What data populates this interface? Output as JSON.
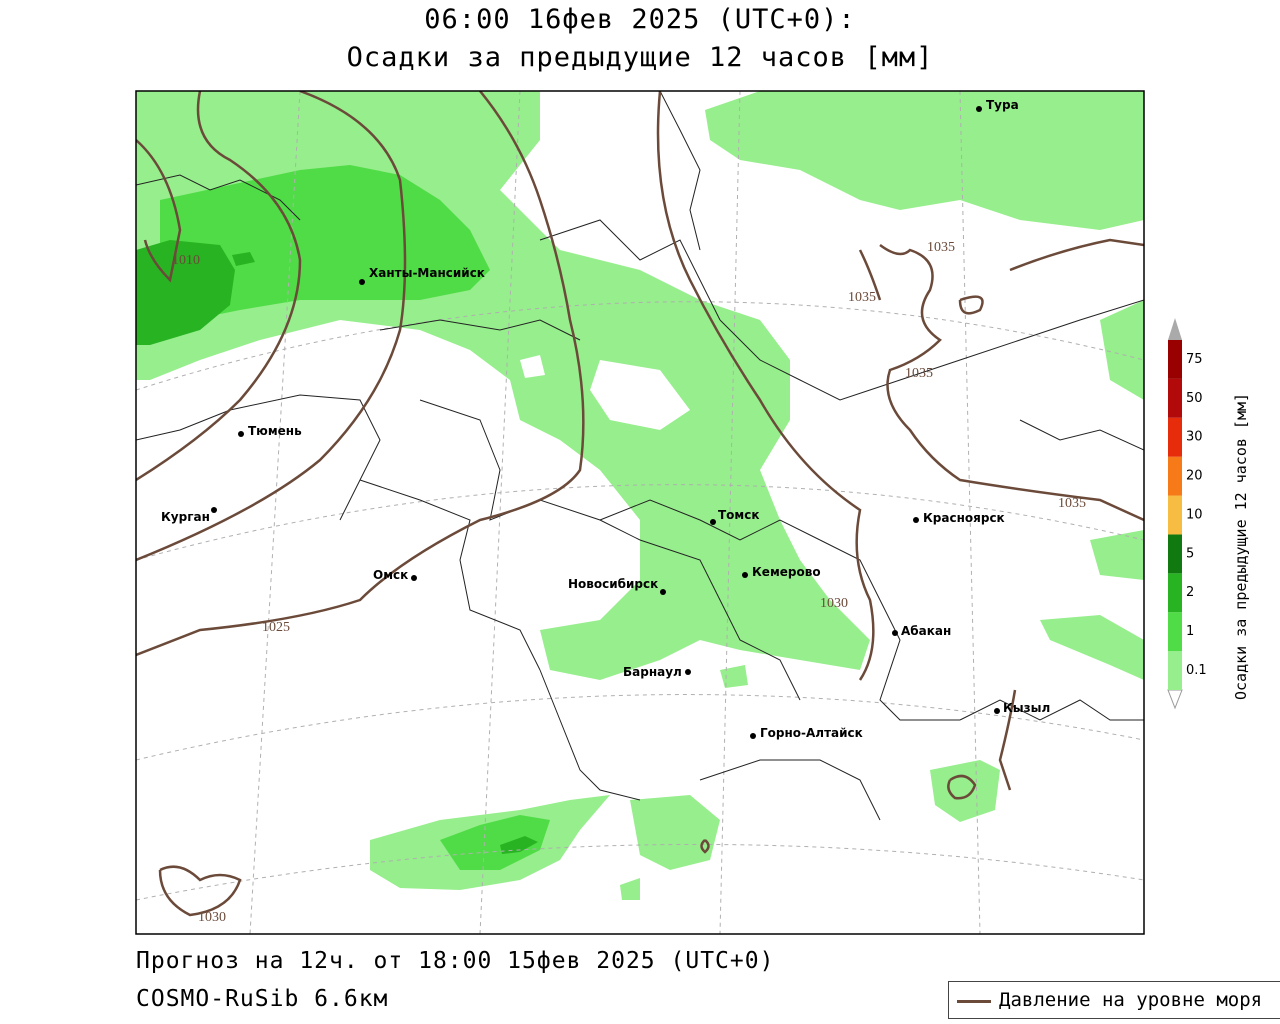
{
  "title": {
    "line1": "06:00 16фев 2025 (UTC+0):",
    "line2": "Осадки за предыдущие 12 часов [мм]"
  },
  "footer": {
    "forecast": "Прогноз на 12ч. от 18:00 15фев 2025 (UTC+0)",
    "model": "COSMO-RuSib 6.6км"
  },
  "pressure_legend": {
    "label": "Давление на уровне моря",
    "color": "#6b4a3a"
  },
  "colorbar": {
    "title": "Осадки за предыдущие 12 часов [мм]",
    "levels": [
      "0.1",
      "1",
      "2",
      "5",
      "10",
      "20",
      "30",
      "50",
      "75"
    ],
    "colors": [
      "#ffffff",
      "#96ee8c",
      "#50dc46",
      "#28b422",
      "#107a10",
      "#f7bd42",
      "#f67a18",
      "#e62c0a",
      "#b20a0a",
      "#990000",
      "#aaaaaa"
    ]
  },
  "cities": [
    {
      "name": "Тура"
    },
    {
      "name": "Ханты-Мансийск"
    },
    {
      "name": "Тюмень"
    },
    {
      "name": "Курган"
    },
    {
      "name": "Омск"
    },
    {
      "name": "Новосибирск"
    },
    {
      "name": "Томск"
    },
    {
      "name": "Кемерово"
    },
    {
      "name": "Красноярск"
    },
    {
      "name": "Абакан"
    },
    {
      "name": "Барнаул"
    },
    {
      "name": "Горно-Алтайск"
    },
    {
      "name": "Кызыл"
    }
  ],
  "isobar_labels": [
    "1010",
    "1025",
    "1030",
    "1030",
    "1035",
    "1035",
    "1035",
    "1035"
  ]
}
